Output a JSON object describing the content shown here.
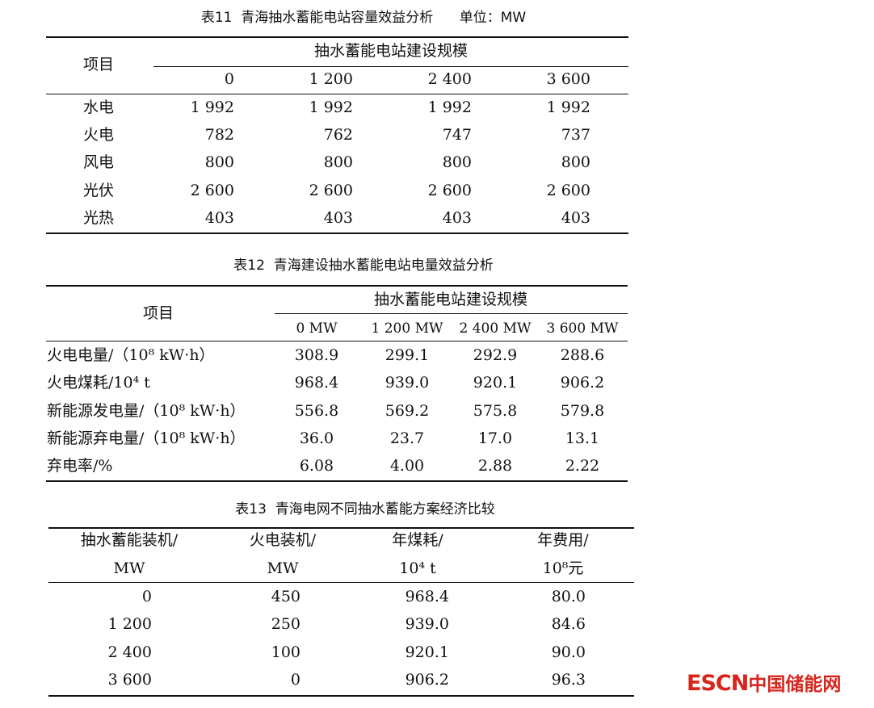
{
  "table11": {
    "title": "表11  青海抽水蓄能电站容量效益分析      单位：MW",
    "row_header": "项目",
    "group_header": "抽水蓄能电站建设规模",
    "columns": [
      "0",
      "1 200",
      "2 400",
      "3 600"
    ],
    "rows": [
      {
        "label": "水电",
        "values": [
          "1 992",
          "1 992",
          "1 992",
          "1 992"
        ]
      },
      {
        "label": "火电",
        "values": [
          "782",
          "762",
          "747",
          "737"
        ]
      },
      {
        "label": "风电",
        "values": [
          "800",
          "800",
          "800",
          "800"
        ]
      },
      {
        "label": "光伏",
        "values": [
          "2 600",
          "2 600",
          "2 600",
          "2 600"
        ]
      },
      {
        "label": "光热",
        "values": [
          "403",
          "403",
          "403",
          "403"
        ]
      }
    ]
  },
  "table12": {
    "title": "表12  青海建设抽水蓄能电站电量效益分析",
    "row_header": "项目",
    "group_header": "抽水蓄能电站建设规模",
    "columns": [
      "0 MW",
      "1 200 MW",
      "2 400 MW",
      "3 600 MW"
    ],
    "rows": [
      {
        "label": "火电电量/（10⁸ kW·h）",
        "values": [
          "308.9",
          "299.1",
          "292.9",
          "288.6"
        ]
      },
      {
        "label": "火电煤耗/10⁴ t",
        "values": [
          "968.4",
          "939.0",
          "920.1",
          "906.2"
        ]
      },
      {
        "label": "新能源发电量/（10⁸ kW·h）",
        "values": [
          "556.8",
          "569.2",
          "575.8",
          "579.8"
        ]
      },
      {
        "label": "新能源弃电量/（10⁸ kW·h）",
        "values": [
          "36.0",
          "23.7",
          "17.0",
          "13.1"
        ]
      },
      {
        "label": "弃电率/%",
        "values": [
          "6.08",
          "4.00",
          "2.88",
          "2.22"
        ]
      }
    ]
  },
  "table13": {
    "title": "表13  青海电网不同抽水蓄能方案经济比较",
    "headers": [
      {
        "line1": "抽水蓄能装机/",
        "line2": "MW"
      },
      {
        "line1": "火电装机/",
        "line2": "MW"
      },
      {
        "line1": "年煤耗/",
        "line2": "10⁴ t"
      },
      {
        "line1": "年费用/",
        "line2": "10⁸元"
      }
    ],
    "rows": [
      [
        "0",
        "450",
        "968.4",
        "80.0"
      ],
      [
        "1 200",
        "250",
        "939.0",
        "84.6"
      ],
      [
        "2 400",
        "100",
        "920.1",
        "90.0"
      ],
      [
        "3 600",
        "0",
        "906.2",
        "96.3"
      ]
    ]
  },
  "watermark": {
    "text": "ESCN中国储能网",
    "latin": "ESCN",
    "cn": "中国储能网",
    "color": "#d7261e"
  }
}
